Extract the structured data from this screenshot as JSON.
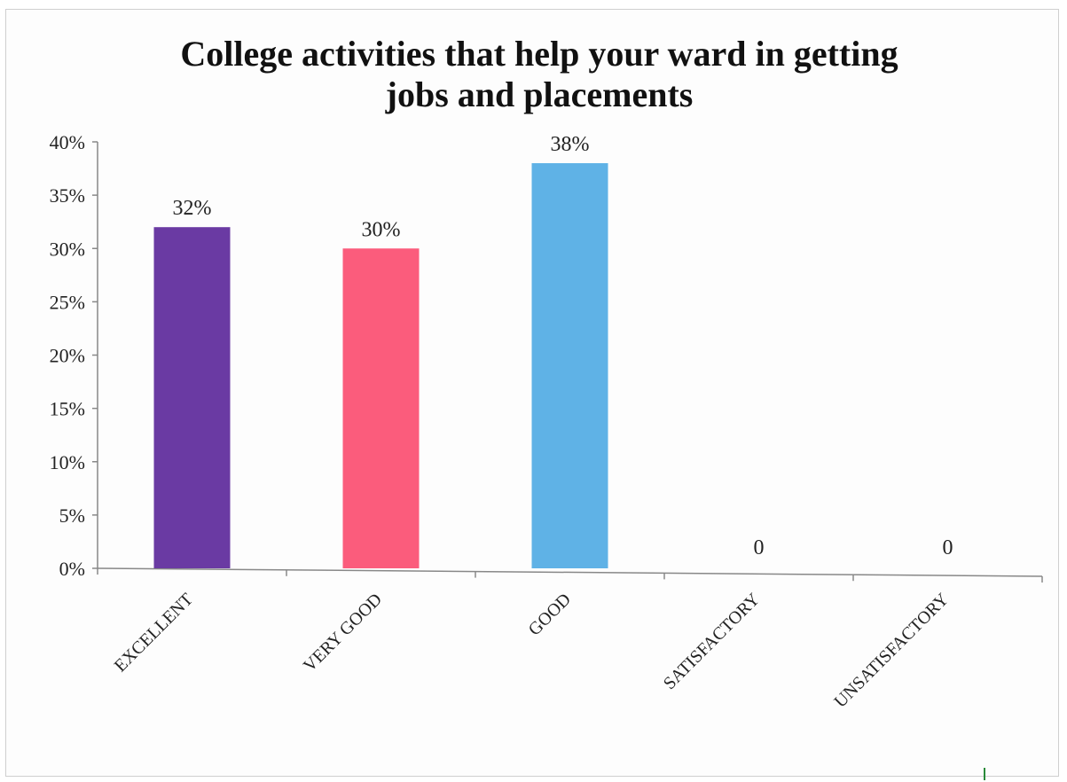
{
  "chart_data": {
    "type": "bar",
    "title": "College activities that help your ward in getting jobs and placements",
    "title_lines": [
      "College activities that help your ward in getting",
      "jobs and placements"
    ],
    "categories": [
      "EXCELLENT",
      "VERY GOOD",
      "GOOD",
      "SATISFACTORY",
      "UNSATISFACTORY"
    ],
    "values": [
      32,
      30,
      38,
      0,
      0
    ],
    "data_labels": [
      "32%",
      "30%",
      "38%",
      "0",
      "0"
    ],
    "bar_colors": [
      "#6a3aa3",
      "#fb5c7c",
      "#5fb2e6",
      "#ffffff",
      "#ffffff"
    ],
    "ylim": [
      0,
      40
    ],
    "y_ticks": [
      0,
      5,
      10,
      15,
      20,
      25,
      30,
      35,
      40
    ],
    "y_tick_labels": [
      "0%",
      "5%",
      "10%",
      "15%",
      "20%",
      "25%",
      "30%",
      "35%",
      "40%"
    ],
    "xlabel": "",
    "ylabel": "",
    "grid": false,
    "legend": "none"
  }
}
